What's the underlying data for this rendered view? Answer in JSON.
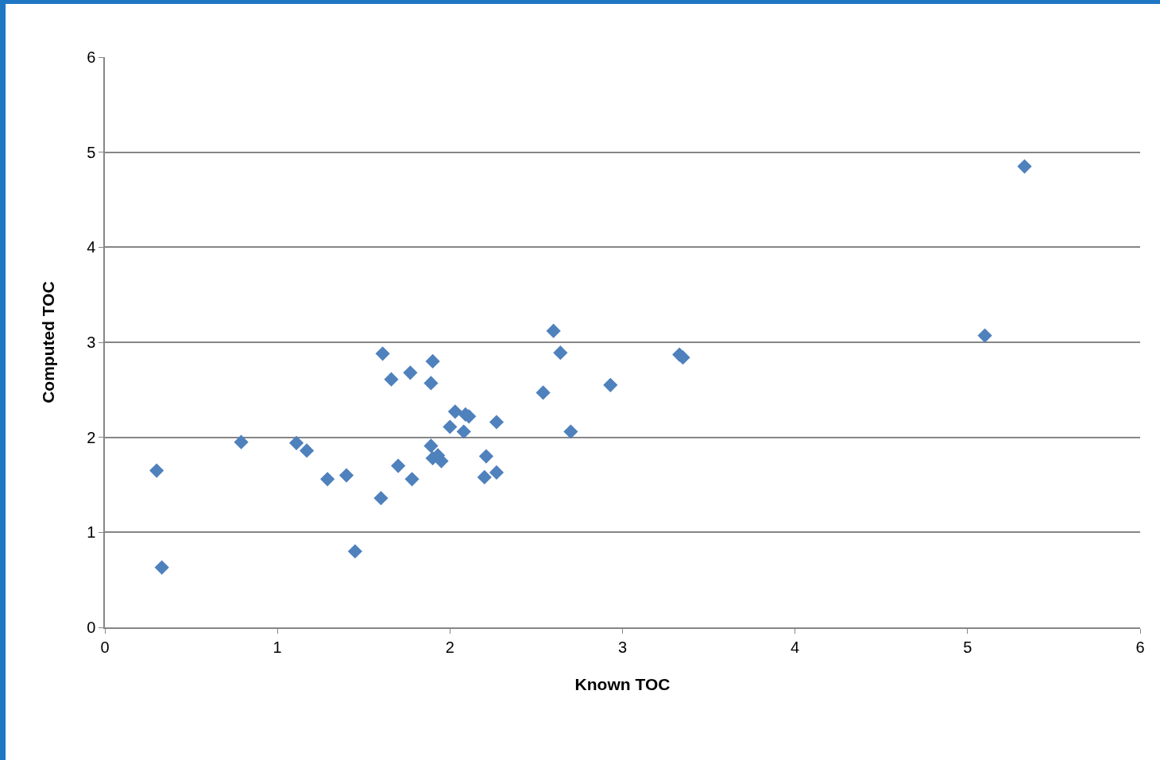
{
  "chart_data": {
    "type": "scatter",
    "xlabel": "Known TOC",
    "ylabel": "Computed TOC",
    "marker": "diamond",
    "grid": "y",
    "xlim": [
      0,
      6
    ],
    "xticks": [
      0,
      1,
      2,
      3,
      4,
      5,
      6
    ],
    "ylim": [
      0,
      6
    ],
    "yticks": [
      0,
      1,
      2,
      3,
      4,
      5,
      6
    ],
    "series": [
      {
        "color": "#4f81bd",
        "x": [
          0.3,
          0.33,
          0.79,
          1.11,
          1.17,
          1.29,
          1.4,
          1.45,
          1.6,
          1.61,
          1.66,
          1.7,
          1.77,
          1.78,
          1.89,
          1.9,
          1.89,
          1.9,
          1.93,
          1.95,
          2.0,
          2.03,
          2.08,
          2.09,
          2.11,
          2.27,
          2.21,
          2.2,
          2.27,
          2.54,
          2.6,
          2.64,
          2.7,
          2.93,
          3.33,
          3.35,
          5.1,
          5.33
        ],
        "values": [
          1.65,
          0.63,
          1.95,
          1.94,
          1.86,
          1.56,
          1.6,
          0.8,
          1.36,
          2.88,
          2.61,
          1.7,
          2.68,
          1.56,
          2.57,
          2.8,
          1.91,
          1.78,
          1.81,
          1.75,
          2.11,
          2.27,
          2.06,
          2.24,
          2.22,
          2.16,
          1.8,
          1.58,
          1.63,
          2.47,
          3.12,
          2.89,
          2.06,
          2.55,
          2.87,
          2.84,
          3.07,
          4.85
        ]
      }
    ]
  }
}
